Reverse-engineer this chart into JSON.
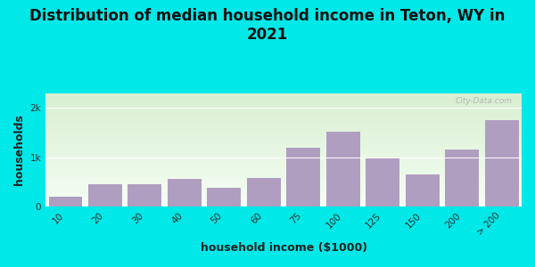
{
  "title": "Distribution of median household income in Teton, WY in\n2021",
  "xlabel": "household income ($1000)",
  "ylabel": "households",
  "bar_labels": [
    "10",
    "20",
    "30",
    "40",
    "50",
    "60",
    "75",
    "100",
    "125",
    "150",
    "200",
    "> 200"
  ],
  "bar_values": [
    210,
    450,
    450,
    560,
    390,
    580,
    1200,
    1520,
    970,
    660,
    1150,
    1750
  ],
  "bar_color": "#b09ec0",
  "yticks": [
    0,
    1000,
    2000
  ],
  "ytick_labels": [
    "0",
    "1k",
    "2k"
  ],
  "ylim": [
    0,
    2300
  ],
  "bg_color_top": "#d8efd0",
  "bg_color_bottom": "#f5fef5",
  "outer_bg": "#00e8e8",
  "title_fontsize": 12,
  "axis_label_fontsize": 9,
  "tick_fontsize": 7.5,
  "watermark": "City-Data.com"
}
